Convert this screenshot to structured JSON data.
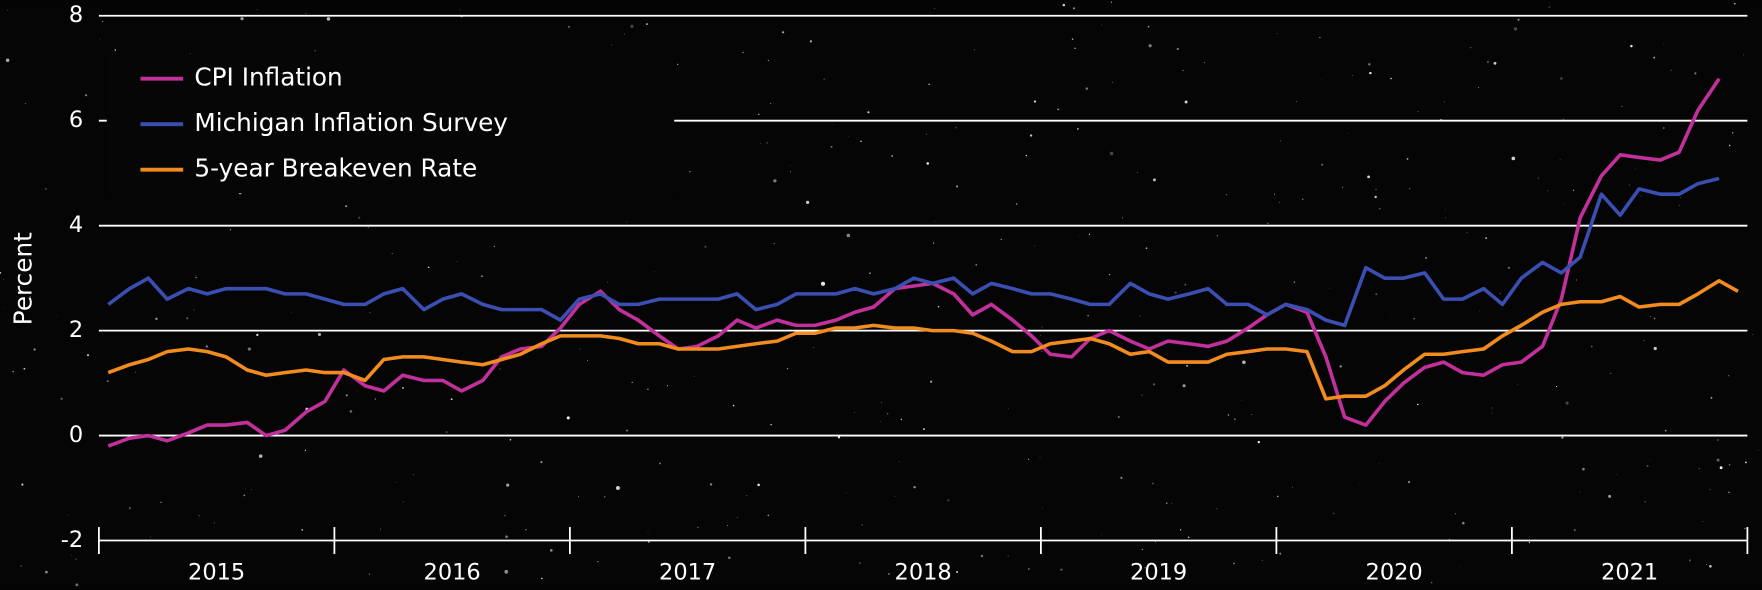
{
  "chart_data": {
    "type": "line",
    "ylabel": "Percent",
    "categories": [
      "2015",
      "2016",
      "2017",
      "2018",
      "2019",
      "2020",
      "2021"
    ],
    "x": [
      2015.04,
      2015.13,
      2015.21,
      2015.29,
      2015.38,
      2015.46,
      2015.54,
      2015.63,
      2015.71,
      2015.79,
      2015.88,
      2015.96,
      2016.04,
      2016.13,
      2016.21,
      2016.29,
      2016.38,
      2016.46,
      2016.54,
      2016.63,
      2016.71,
      2016.79,
      2016.88,
      2016.96,
      2017.04,
      2017.13,
      2017.21,
      2017.29,
      2017.38,
      2017.46,
      2017.54,
      2017.63,
      2017.71,
      2017.79,
      2017.88,
      2017.96,
      2018.04,
      2018.13,
      2018.21,
      2018.29,
      2018.38,
      2018.46,
      2018.54,
      2018.63,
      2018.71,
      2018.79,
      2018.88,
      2018.96,
      2019.04,
      2019.13,
      2019.21,
      2019.29,
      2019.38,
      2019.46,
      2019.54,
      2019.63,
      2019.71,
      2019.79,
      2019.88,
      2019.96,
      2020.04,
      2020.13,
      2020.21,
      2020.29,
      2020.38,
      2020.46,
      2020.54,
      2020.63,
      2020.71,
      2020.79,
      2020.88,
      2020.96,
      2021.04,
      2021.13,
      2021.21,
      2021.29,
      2021.38,
      2021.46,
      2021.54,
      2021.63,
      2021.71,
      2021.79,
      2021.88,
      2021.96
    ],
    "xlim": [
      2015,
      2022
    ],
    "ylim": [
      -2,
      8
    ],
    "yticks": [
      -2,
      0,
      2,
      4,
      6,
      8
    ],
    "grid": true,
    "legend": "upper left",
    "series": [
      {
        "name": "CPI Inflation",
        "color": "#c2309c",
        "values": [
          -0.2,
          -0.05,
          0.0,
          -0.1,
          0.05,
          0.2,
          0.2,
          0.25,
          0.0,
          0.1,
          0.45,
          0.65,
          1.25,
          0.95,
          0.85,
          1.15,
          1.05,
          1.05,
          0.85,
          1.05,
          1.5,
          1.65,
          1.7,
          2.05,
          2.5,
          2.75,
          2.4,
          2.2,
          1.9,
          1.65,
          1.7,
          1.9,
          2.2,
          2.05,
          2.2,
          2.1,
          2.1,
          2.2,
          2.35,
          2.45,
          2.8,
          2.85,
          2.9,
          2.7,
          2.3,
          2.5,
          2.2,
          1.9,
          1.55,
          1.5,
          1.85,
          2.0,
          1.8,
          1.65,
          1.8,
          1.75,
          1.7,
          1.8,
          2.05,
          2.3,
          2.5,
          2.35,
          1.5,
          0.35,
          0.2,
          0.65,
          1.0,
          1.3,
          1.4,
          1.2,
          1.15,
          1.35,
          1.4,
          1.7,
          2.6,
          4.15,
          4.95,
          5.35,
          5.3,
          5.25,
          5.4,
          6.2,
          6.8,
          null
        ]
      },
      {
        "name": "Michigan Inflation Survey",
        "color": "#3b4fb2",
        "values": [
          2.5,
          2.8,
          3.0,
          2.6,
          2.8,
          2.7,
          2.8,
          2.8,
          2.8,
          2.7,
          2.7,
          2.6,
          2.5,
          2.5,
          2.7,
          2.8,
          2.4,
          2.6,
          2.7,
          2.5,
          2.4,
          2.4,
          2.4,
          2.2,
          2.6,
          2.7,
          2.5,
          2.5,
          2.6,
          2.6,
          2.6,
          2.6,
          2.7,
          2.4,
          2.5,
          2.7,
          2.7,
          2.7,
          2.8,
          2.7,
          2.8,
          3.0,
          2.9,
          3.0,
          2.7,
          2.9,
          2.8,
          2.7,
          2.7,
          2.6,
          2.5,
          2.5,
          2.9,
          2.7,
          2.6,
          2.7,
          2.8,
          2.5,
          2.5,
          2.3,
          2.5,
          2.4,
          2.2,
          2.1,
          3.2,
          3.0,
          3.0,
          3.1,
          2.6,
          2.6,
          2.8,
          2.5,
          3.0,
          3.3,
          3.1,
          3.4,
          4.6,
          4.2,
          4.7,
          4.6,
          4.6,
          4.8,
          4.9,
          null
        ]
      },
      {
        "name": "5-year Breakeven Rate",
        "color": "#f28c1e",
        "values": [
          1.2,
          1.35,
          1.45,
          1.6,
          1.65,
          1.6,
          1.5,
          1.25,
          1.15,
          1.2,
          1.25,
          1.2,
          1.2,
          1.05,
          1.45,
          1.5,
          1.5,
          1.45,
          1.4,
          1.35,
          1.45,
          1.55,
          1.75,
          1.9,
          1.9,
          1.9,
          1.85,
          1.75,
          1.75,
          1.65,
          1.65,
          1.65,
          1.7,
          1.75,
          1.8,
          1.95,
          1.95,
          2.05,
          2.05,
          2.1,
          2.05,
          2.05,
          2.0,
          2.0,
          1.95,
          1.8,
          1.6,
          1.6,
          1.75,
          1.8,
          1.85,
          1.75,
          1.55,
          1.6,
          1.4,
          1.4,
          1.4,
          1.55,
          1.6,
          1.65,
          1.65,
          1.6,
          0.7,
          0.75,
          0.75,
          0.95,
          1.25,
          1.55,
          1.55,
          1.6,
          1.65,
          1.9,
          2.1,
          2.35,
          2.5,
          2.55,
          2.55,
          2.65,
          2.45,
          2.5,
          2.5,
          2.7,
          2.95,
          2.75
        ]
      }
    ]
  }
}
